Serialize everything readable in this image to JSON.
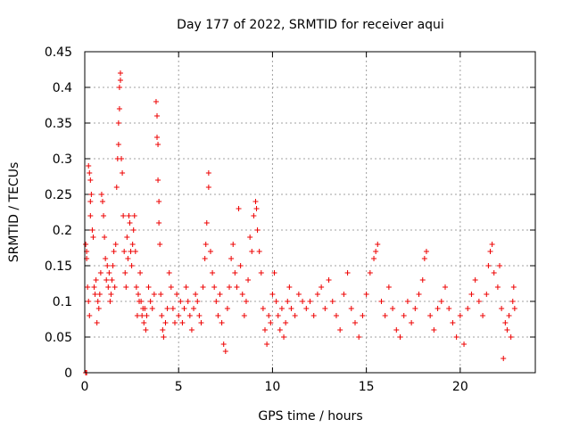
{
  "chart_data": {
    "type": "scatter",
    "title": "Day 177 of 2022, SRMTID for receiver aqui",
    "xlabel": "GPS time / hours",
    "ylabel": "SRMTID / TECUs",
    "xlim": [
      0,
      24
    ],
    "ylim": [
      0,
      0.45
    ],
    "xticks": [
      0,
      5,
      10,
      15,
      20
    ],
    "xtick_labels": [
      "0",
      "5",
      "10",
      "15",
      "20"
    ],
    "yticks": [
      0,
      0.05,
      0.1,
      0.15,
      0.2,
      0.25,
      0.3,
      0.35,
      0.4,
      0.45
    ],
    "ytick_labels": [
      "0",
      "0.05",
      "0.1",
      "0.15",
      "0.2",
      "0.25",
      "0.3",
      "0.35",
      "0.4",
      "0.45"
    ],
    "grid": true,
    "marker": "+",
    "marker_color": "#ee0000",
    "series": [
      {
        "name": "SRMTID",
        "color": "#ee0000",
        "points": [
          [
            0.05,
            0.0
          ],
          [
            0.1,
            0.0
          ],
          [
            0.05,
            0.18
          ],
          [
            0.1,
            0.17
          ],
          [
            0.1,
            0.16
          ],
          [
            0.15,
            0.12
          ],
          [
            0.2,
            0.1
          ],
          [
            0.25,
            0.08
          ],
          [
            0.2,
            0.29
          ],
          [
            0.25,
            0.28
          ],
          [
            0.3,
            0.27
          ],
          [
            0.3,
            0.24
          ],
          [
            0.35,
            0.25
          ],
          [
            0.3,
            0.22
          ],
          [
            0.4,
            0.2
          ],
          [
            0.45,
            0.19
          ],
          [
            0.5,
            0.12
          ],
          [
            0.55,
            0.11
          ],
          [
            0.6,
            0.13
          ],
          [
            0.65,
            0.07
          ],
          [
            0.7,
            0.1
          ],
          [
            0.75,
            0.09
          ],
          [
            0.8,
            0.11
          ],
          [
            0.85,
            0.14
          ],
          [
            0.9,
            0.25
          ],
          [
            0.95,
            0.24
          ],
          [
            1.0,
            0.22
          ],
          [
            1.05,
            0.19
          ],
          [
            1.1,
            0.16
          ],
          [
            1.15,
            0.13
          ],
          [
            1.2,
            0.15
          ],
          [
            1.25,
            0.12
          ],
          [
            1.3,
            0.14
          ],
          [
            1.35,
            0.1
          ],
          [
            1.4,
            0.11
          ],
          [
            1.45,
            0.13
          ],
          [
            1.5,
            0.15
          ],
          [
            1.55,
            0.17
          ],
          [
            1.6,
            0.12
          ],
          [
            1.65,
            0.18
          ],
          [
            1.7,
            0.26
          ],
          [
            1.75,
            0.3
          ],
          [
            1.8,
            0.32
          ],
          [
            1.8,
            0.35
          ],
          [
            1.85,
            0.37
          ],
          [
            1.85,
            0.4
          ],
          [
            1.9,
            0.42
          ],
          [
            1.9,
            0.41
          ],
          [
            1.95,
            0.3
          ],
          [
            2.0,
            0.28
          ],
          [
            2.05,
            0.22
          ],
          [
            2.1,
            0.17
          ],
          [
            2.15,
            0.14
          ],
          [
            2.2,
            0.12
          ],
          [
            2.25,
            0.19
          ],
          [
            2.3,
            0.16
          ],
          [
            2.35,
            0.22
          ],
          [
            2.4,
            0.21
          ],
          [
            2.45,
            0.17
          ],
          [
            2.5,
            0.15
          ],
          [
            2.55,
            0.18
          ],
          [
            2.6,
            0.2
          ],
          [
            2.65,
            0.22
          ],
          [
            2.7,
            0.17
          ],
          [
            2.75,
            0.12
          ],
          [
            2.8,
            0.08
          ],
          [
            2.85,
            0.11
          ],
          [
            2.9,
            0.1
          ],
          [
            2.95,
            0.14
          ],
          [
            3.0,
            0.1
          ],
          [
            3.05,
            0.08
          ],
          [
            3.1,
            0.09
          ],
          [
            3.15,
            0.07
          ],
          [
            3.2,
            0.09
          ],
          [
            3.25,
            0.06
          ],
          [
            3.3,
            0.08
          ],
          [
            3.4,
            0.12
          ],
          [
            3.5,
            0.1
          ],
          [
            3.6,
            0.09
          ],
          [
            3.7,
            0.11
          ],
          [
            3.8,
            0.38
          ],
          [
            3.85,
            0.36
          ],
          [
            3.85,
            0.33
          ],
          [
            3.9,
            0.32
          ],
          [
            3.9,
            0.27
          ],
          [
            3.95,
            0.24
          ],
          [
            3.95,
            0.21
          ],
          [
            4.0,
            0.18
          ],
          [
            4.05,
            0.11
          ],
          [
            4.1,
            0.08
          ],
          [
            4.15,
            0.06
          ],
          [
            4.2,
            0.05
          ],
          [
            4.3,
            0.07
          ],
          [
            4.4,
            0.09
          ],
          [
            4.5,
            0.14
          ],
          [
            4.6,
            0.12
          ],
          [
            4.7,
            0.09
          ],
          [
            4.8,
            0.07
          ],
          [
            4.9,
            0.11
          ],
          [
            5.0,
            0.08
          ],
          [
            5.1,
            0.1
          ],
          [
            5.2,
            0.07
          ],
          [
            5.3,
            0.09
          ],
          [
            5.4,
            0.12
          ],
          [
            5.5,
            0.1
          ],
          [
            5.6,
            0.08
          ],
          [
            5.7,
            0.06
          ],
          [
            5.8,
            0.09
          ],
          [
            5.9,
            0.11
          ],
          [
            6.0,
            0.1
          ],
          [
            6.1,
            0.08
          ],
          [
            6.2,
            0.07
          ],
          [
            6.3,
            0.12
          ],
          [
            6.4,
            0.16
          ],
          [
            6.45,
            0.18
          ],
          [
            6.5,
            0.21
          ],
          [
            6.6,
            0.28
          ],
          [
            6.6,
            0.26
          ],
          [
            6.7,
            0.17
          ],
          [
            6.8,
            0.14
          ],
          [
            6.9,
            0.12
          ],
          [
            7.0,
            0.1
          ],
          [
            7.1,
            0.08
          ],
          [
            7.2,
            0.11
          ],
          [
            7.3,
            0.07
          ],
          [
            7.4,
            0.04
          ],
          [
            7.5,
            0.03
          ],
          [
            7.6,
            0.09
          ],
          [
            7.7,
            0.12
          ],
          [
            7.8,
            0.16
          ],
          [
            7.9,
            0.18
          ],
          [
            8.0,
            0.14
          ],
          [
            8.1,
            0.12
          ],
          [
            8.2,
            0.23
          ],
          [
            8.3,
            0.15
          ],
          [
            8.4,
            0.11
          ],
          [
            8.5,
            0.08
          ],
          [
            8.6,
            0.1
          ],
          [
            8.7,
            0.13
          ],
          [
            8.8,
            0.19
          ],
          [
            8.9,
            0.17
          ],
          [
            9.0,
            0.22
          ],
          [
            9.1,
            0.24
          ],
          [
            9.15,
            0.23
          ],
          [
            9.2,
            0.2
          ],
          [
            9.3,
            0.17
          ],
          [
            9.4,
            0.14
          ],
          [
            9.5,
            0.09
          ],
          [
            9.6,
            0.06
          ],
          [
            9.7,
            0.04
          ],
          [
            9.8,
            0.08
          ],
          [
            9.9,
            0.07
          ],
          [
            10.0,
            0.11
          ],
          [
            10.1,
            0.14
          ],
          [
            10.2,
            0.1
          ],
          [
            10.3,
            0.08
          ],
          [
            10.4,
            0.06
          ],
          [
            10.5,
            0.09
          ],
          [
            10.6,
            0.05
          ],
          [
            10.7,
            0.07
          ],
          [
            10.8,
            0.1
          ],
          [
            10.9,
            0.12
          ],
          [
            11.0,
            0.09
          ],
          [
            11.2,
            0.08
          ],
          [
            11.4,
            0.11
          ],
          [
            11.6,
            0.1
          ],
          [
            11.8,
            0.09
          ],
          [
            12.0,
            0.1
          ],
          [
            12.2,
            0.08
          ],
          [
            12.4,
            0.11
          ],
          [
            12.6,
            0.12
          ],
          [
            12.8,
            0.09
          ],
          [
            13.0,
            0.13
          ],
          [
            13.2,
            0.1
          ],
          [
            13.4,
            0.08
          ],
          [
            13.6,
            0.06
          ],
          [
            13.8,
            0.11
          ],
          [
            14.0,
            0.14
          ],
          [
            14.2,
            0.09
          ],
          [
            14.4,
            0.07
          ],
          [
            14.6,
            0.05
          ],
          [
            14.8,
            0.08
          ],
          [
            15.0,
            0.11
          ],
          [
            15.2,
            0.14
          ],
          [
            15.4,
            0.16
          ],
          [
            15.5,
            0.17
          ],
          [
            15.6,
            0.18
          ],
          [
            15.8,
            0.1
          ],
          [
            16.0,
            0.08
          ],
          [
            16.2,
            0.12
          ],
          [
            16.4,
            0.09
          ],
          [
            16.6,
            0.06
          ],
          [
            16.8,
            0.05
          ],
          [
            17.0,
            0.08
          ],
          [
            17.2,
            0.1
          ],
          [
            17.4,
            0.07
          ],
          [
            17.6,
            0.09
          ],
          [
            17.8,
            0.11
          ],
          [
            18.0,
            0.13
          ],
          [
            18.1,
            0.16
          ],
          [
            18.2,
            0.17
          ],
          [
            18.4,
            0.08
          ],
          [
            18.6,
            0.06
          ],
          [
            18.8,
            0.09
          ],
          [
            19.0,
            0.1
          ],
          [
            19.2,
            0.12
          ],
          [
            19.4,
            0.09
          ],
          [
            19.6,
            0.07
          ],
          [
            19.8,
            0.05
          ],
          [
            20.0,
            0.08
          ],
          [
            20.2,
            0.04
          ],
          [
            20.4,
            0.09
          ],
          [
            20.6,
            0.11
          ],
          [
            20.8,
            0.13
          ],
          [
            21.0,
            0.1
          ],
          [
            21.2,
            0.08
          ],
          [
            21.4,
            0.11
          ],
          [
            21.5,
            0.15
          ],
          [
            21.6,
            0.17
          ],
          [
            21.7,
            0.18
          ],
          [
            21.8,
            0.14
          ],
          [
            22.0,
            0.12
          ],
          [
            22.1,
            0.15
          ],
          [
            22.2,
            0.09
          ],
          [
            22.3,
            0.02
          ],
          [
            22.4,
            0.07
          ],
          [
            22.5,
            0.06
          ],
          [
            22.6,
            0.08
          ],
          [
            22.7,
            0.05
          ],
          [
            22.8,
            0.1
          ],
          [
            22.85,
            0.12
          ],
          [
            22.9,
            0.09
          ]
        ]
      }
    ]
  }
}
